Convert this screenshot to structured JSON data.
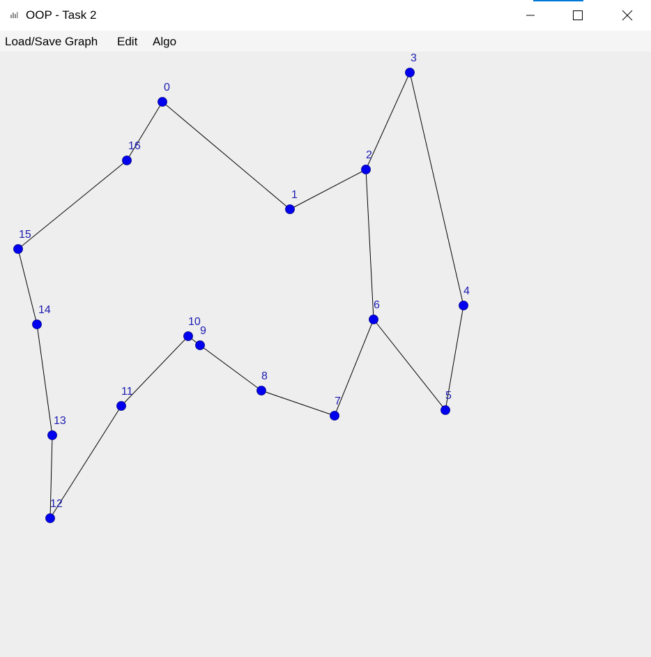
{
  "window": {
    "title": "OOP - Task 2"
  },
  "menu": {
    "items": [
      {
        "label": "Load/Save Graph"
      },
      {
        "label": "Edit"
      },
      {
        "label": "Algo"
      }
    ]
  },
  "graph": {
    "node_color": "#0000ee",
    "label_color": "#1a1ab0",
    "edge_color": "#000000",
    "nodes": [
      {
        "id": "0"
      },
      {
        "id": "1"
      },
      {
        "id": "2"
      },
      {
        "id": "3"
      },
      {
        "id": "4"
      },
      {
        "id": "5"
      },
      {
        "id": "6"
      },
      {
        "id": "7"
      },
      {
        "id": "8"
      },
      {
        "id": "9"
      },
      {
        "id": "10"
      },
      {
        "id": "11"
      },
      {
        "id": "12"
      },
      {
        "id": "13"
      },
      {
        "id": "14"
      },
      {
        "id": "15"
      },
      {
        "id": "16"
      }
    ],
    "edges": [
      [
        "0",
        "1"
      ],
      [
        "1",
        "2"
      ],
      [
        "2",
        "3"
      ],
      [
        "3",
        "4"
      ],
      [
        "4",
        "5"
      ],
      [
        "5",
        "6"
      ],
      [
        "2",
        "6"
      ],
      [
        "6",
        "7"
      ],
      [
        "7",
        "8"
      ],
      [
        "8",
        "9"
      ],
      [
        "9",
        "10"
      ],
      [
        "10",
        "11"
      ],
      [
        "11",
        "12"
      ],
      [
        "12",
        "13"
      ],
      [
        "13",
        "14"
      ],
      [
        "14",
        "15"
      ],
      [
        "15",
        "16"
      ],
      [
        "16",
        "0"
      ]
    ]
  }
}
